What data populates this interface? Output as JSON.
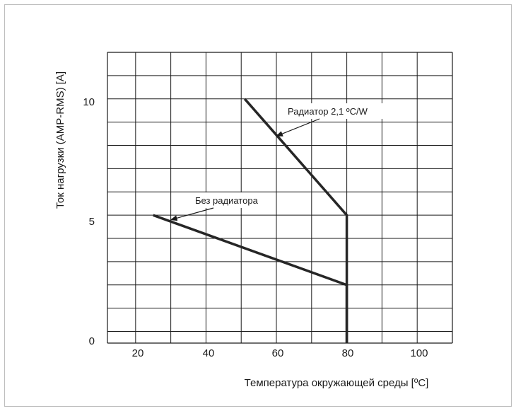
{
  "chart_data": {
    "type": "line",
    "xlabel": "Температура окружающей среды [ºC]",
    "ylabel": "Ток нагрузки (AMP-RMS) [A]",
    "x_ticks": [
      "20",
      "40",
      "60",
      "80",
      "100"
    ],
    "y_ticks": [
      "0",
      "5",
      "10"
    ],
    "xlim": [
      12,
      110
    ],
    "ylim": [
      -0.5,
      12
    ],
    "grid": true,
    "series": [
      {
        "name": "Радиатор 2,1 ºC/W",
        "x": [
          51,
          80,
          80
        ],
        "y": [
          10,
          5,
          -0.5
        ]
      },
      {
        "name": "Без радиатора",
        "x": [
          25,
          80,
          80
        ],
        "y": [
          5,
          2,
          -0.5
        ]
      }
    ],
    "annotations": [
      {
        "text": "Радиатор 2,1 ºC/W",
        "points_to": [
          60,
          8.4
        ]
      },
      {
        "text": "Без радиатора",
        "points_to": [
          30,
          4.8
        ]
      }
    ]
  }
}
